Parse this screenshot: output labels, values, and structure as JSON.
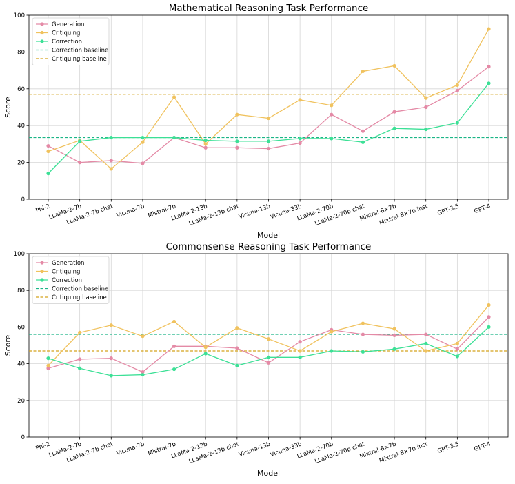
{
  "chart_data": [
    {
      "type": "line",
      "title": "Mathematical Reasoning Task Performance",
      "xlabel": "Model",
      "ylabel": "Score",
      "ylim": [
        0,
        100
      ],
      "yticks": [
        0,
        20,
        40,
        60,
        80,
        100
      ],
      "grid": true,
      "legend_position": "top-left",
      "categories": [
        "Phi-2",
        "LLaMa-2-7b",
        "LLaMa-2-7b chat",
        "Vicuna-7b",
        "Mistral-7b",
        "LLaMa-2-13b",
        "LLaMa-2-13b chat",
        "Vicuna-13b",
        "Vicuna-33b",
        "LLaMa-2-70b",
        "LLaMa-2-70b chat",
        "Mixtral-8×7b",
        "Mixtral-8×7b inst",
        "GPT-3.5",
        "GPT-4"
      ],
      "series": [
        {
          "name": "Generation",
          "color": "#e48aa6",
          "values": [
            29.0,
            20.0,
            21.0,
            19.5,
            33.5,
            28.0,
            28.0,
            27.5,
            30.5,
            46.0,
            37.0,
            47.5,
            50.0,
            59.0,
            72.0
          ]
        },
        {
          "name": "Critiquing",
          "color": "#f0c25e",
          "values": [
            26.0,
            32.0,
            16.5,
            31.0,
            55.5,
            30.0,
            46.0,
            44.0,
            54.0,
            51.0,
            69.5,
            72.5,
            55.0,
            62.0,
            92.5
          ]
        },
        {
          "name": "Correction",
          "color": "#3ce096",
          "values": [
            14.0,
            31.5,
            33.5,
            33.5,
            33.5,
            32.0,
            31.5,
            31.5,
            33.0,
            33.0,
            31.0,
            38.5,
            38.0,
            41.5,
            63.0
          ]
        }
      ],
      "baselines": [
        {
          "name": "Correction baseline",
          "color": "#1bb586",
          "value": 33.5
        },
        {
          "name": "Critiquing baseline",
          "color": "#d4a21c",
          "value": 57.0
        }
      ]
    },
    {
      "type": "line",
      "title": "Commonsense Reasoning Task Performance",
      "xlabel": "Model",
      "ylabel": "Score",
      "ylim": [
        0,
        100
      ],
      "yticks": [
        0,
        20,
        40,
        60,
        80,
        100
      ],
      "grid": true,
      "legend_position": "top-left",
      "categories": [
        "Phi-2",
        "LLaMa-2-7b",
        "LLaMa-2-7b chat",
        "Vicuna-7b",
        "Mistral-7b",
        "LLaMa-2-13b",
        "LLaMa-2-13b chat",
        "Vicuna-13b",
        "Vicuna-33b",
        "LLaMa-2-70b",
        "LLaMa-2-70b chat",
        "Mixtral-8×7b",
        "Mixtral-8×7b inst",
        "GPT-3.5",
        "GPT-4"
      ],
      "series": [
        {
          "name": "Generation",
          "color": "#e48aa6",
          "values": [
            37.5,
            42.5,
            43.0,
            35.5,
            49.5,
            49.5,
            48.5,
            40.5,
            52.0,
            58.5,
            56.0,
            55.5,
            56.0,
            48.0,
            65.5
          ]
        },
        {
          "name": "Critiquing",
          "color": "#f0c25e",
          "values": [
            39.0,
            57.0,
            61.0,
            55.0,
            63.0,
            49.0,
            59.5,
            53.5,
            47.0,
            57.5,
            62.0,
            59.0,
            47.0,
            51.0,
            72.0
          ]
        },
        {
          "name": "Correction",
          "color": "#3ce096",
          "values": [
            43.0,
            37.5,
            33.5,
            34.0,
            37.0,
            45.5,
            39.0,
            43.5,
            43.5,
            47.0,
            46.5,
            48.0,
            51.0,
            44.0,
            60.0
          ]
        }
      ],
      "baselines": [
        {
          "name": "Correction baseline",
          "color": "#1bb586",
          "value": 56.0
        },
        {
          "name": "Critiquing baseline",
          "color": "#d4a21c",
          "value": 47.0
        }
      ]
    }
  ]
}
